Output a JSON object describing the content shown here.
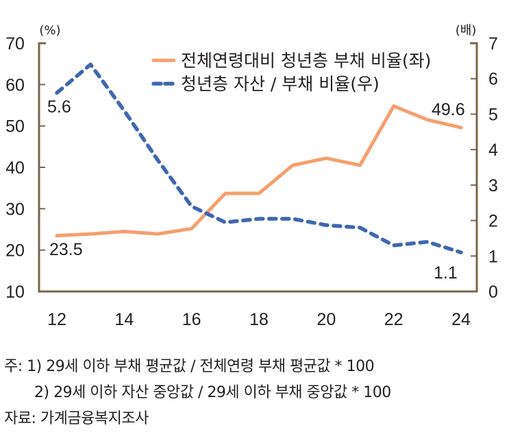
{
  "chart_data": {
    "type": "line",
    "title": "",
    "x": [
      "12",
      "13",
      "14",
      "15",
      "16",
      "17",
      "18",
      "19",
      "20",
      "21",
      "22",
      "23",
      "24"
    ],
    "x_tick_labels": [
      "12",
      "14",
      "16",
      "18",
      "20",
      "22",
      "24"
    ],
    "y_left": {
      "unit": "(%)",
      "range": [
        10,
        70
      ],
      "ticks": [
        10,
        20,
        30,
        40,
        50,
        60,
        70
      ]
    },
    "y_right": {
      "unit": "(배)",
      "range": [
        0,
        7
      ],
      "ticks": [
        0,
        1,
        2,
        3,
        4,
        5,
        6,
        7
      ]
    },
    "series": [
      {
        "name": "전체연령대비 청년층 부채 비율(좌)",
        "axis": "left",
        "style": "solid",
        "color": "#F4A06E",
        "values": [
          23.5,
          23.9,
          24.5,
          23.9,
          25.2,
          33.7,
          33.7,
          40.5,
          42.2,
          40.5,
          54.8,
          51.5,
          49.6
        ],
        "labels": {
          "first": "23.5",
          "last": "49.6"
        }
      },
      {
        "name": "청년층 자산 / 부채 비율(우)",
        "axis": "right",
        "style": "dashed",
        "color": "#3F67B1",
        "values": [
          5.6,
          6.4,
          5.1,
          3.7,
          2.4,
          1.95,
          2.05,
          2.05,
          1.87,
          1.8,
          1.3,
          1.4,
          1.1
        ],
        "labels": {
          "first": "5.6",
          "last": "1.1"
        }
      }
    ],
    "legend_position": "top-right",
    "grid": false,
    "axis_color": "#7A6548"
  },
  "notes": {
    "line1": "주:  1) 29세 이하 부채 평균값 / 전체연령 부채 평균값 * 100",
    "line2": "2) 29세 이하 자산 중앙값 / 29세 이하 부채 중앙값 * 100",
    "source": "자료: 가계금융복지조사"
  }
}
